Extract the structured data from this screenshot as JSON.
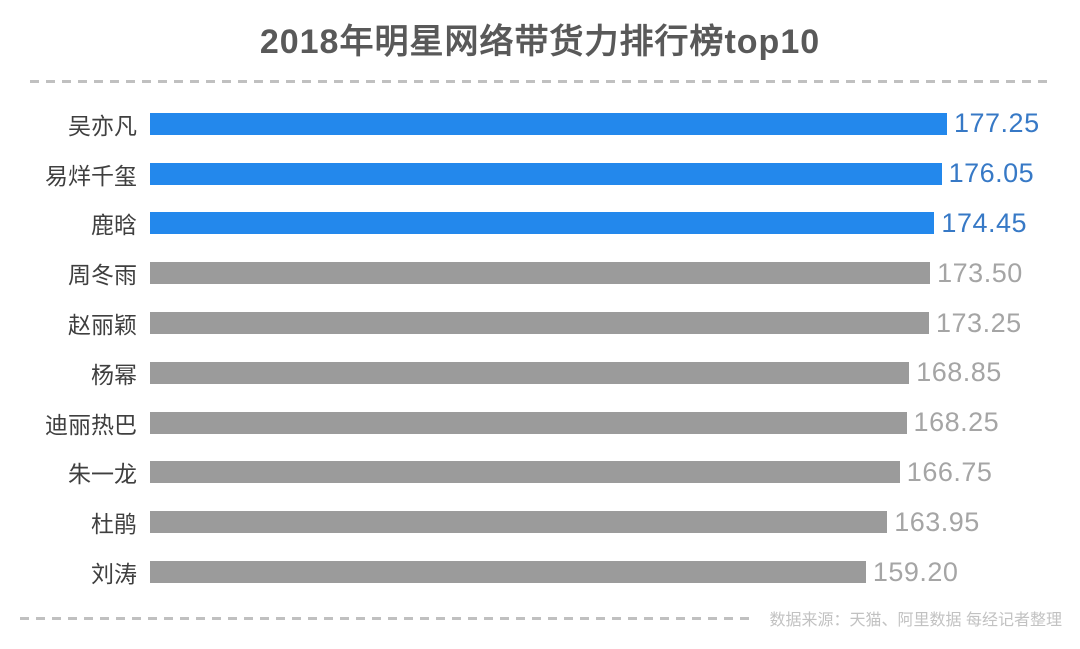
{
  "title": "2018年明星网络带货力排行榜top10",
  "footer": {
    "source_text": "数据来源：天猫、阿里数据 每经记者整理"
  },
  "colors": {
    "background": "#ffffff",
    "title_text": "#595959",
    "label_text": "#3f3f3f",
    "bar_blue": "#2388ec",
    "bar_gray": "#9b9b9b",
    "value_blue": "#3779c6",
    "value_gray": "#a5a5a5",
    "dash_line": "#c0c0c0",
    "footer_text": "#c2c2c2"
  },
  "chart_data": {
    "type": "bar",
    "orientation": "horizontal",
    "title": "2018年明星网络带货力排行榜top10",
    "categories": [
      "吴亦凡",
      "易烊千玺",
      "鹿晗",
      "周冬雨",
      "赵丽颖",
      "杨幂",
      "迪丽热巴",
      "朱一龙",
      "杜鹃",
      "刘涛"
    ],
    "values": [
      177.25,
      176.05,
      174.45,
      173.5,
      173.25,
      168.85,
      168.25,
      166.75,
      163.95,
      159.2
    ],
    "value_labels": [
      "177.25",
      "176.05",
      "174.45",
      "173.50",
      "173.25",
      "168.85",
      "168.25",
      "166.75",
      "163.95",
      "159.20"
    ],
    "highlight_top_n": 3,
    "xlim": [
      0,
      177.25
    ],
    "bar_order": "descending",
    "grid": false,
    "legend": false,
    "value_label_position": "right-of-bar",
    "source_note": "数据来源：天猫、阿里数据 每经记者整理"
  }
}
